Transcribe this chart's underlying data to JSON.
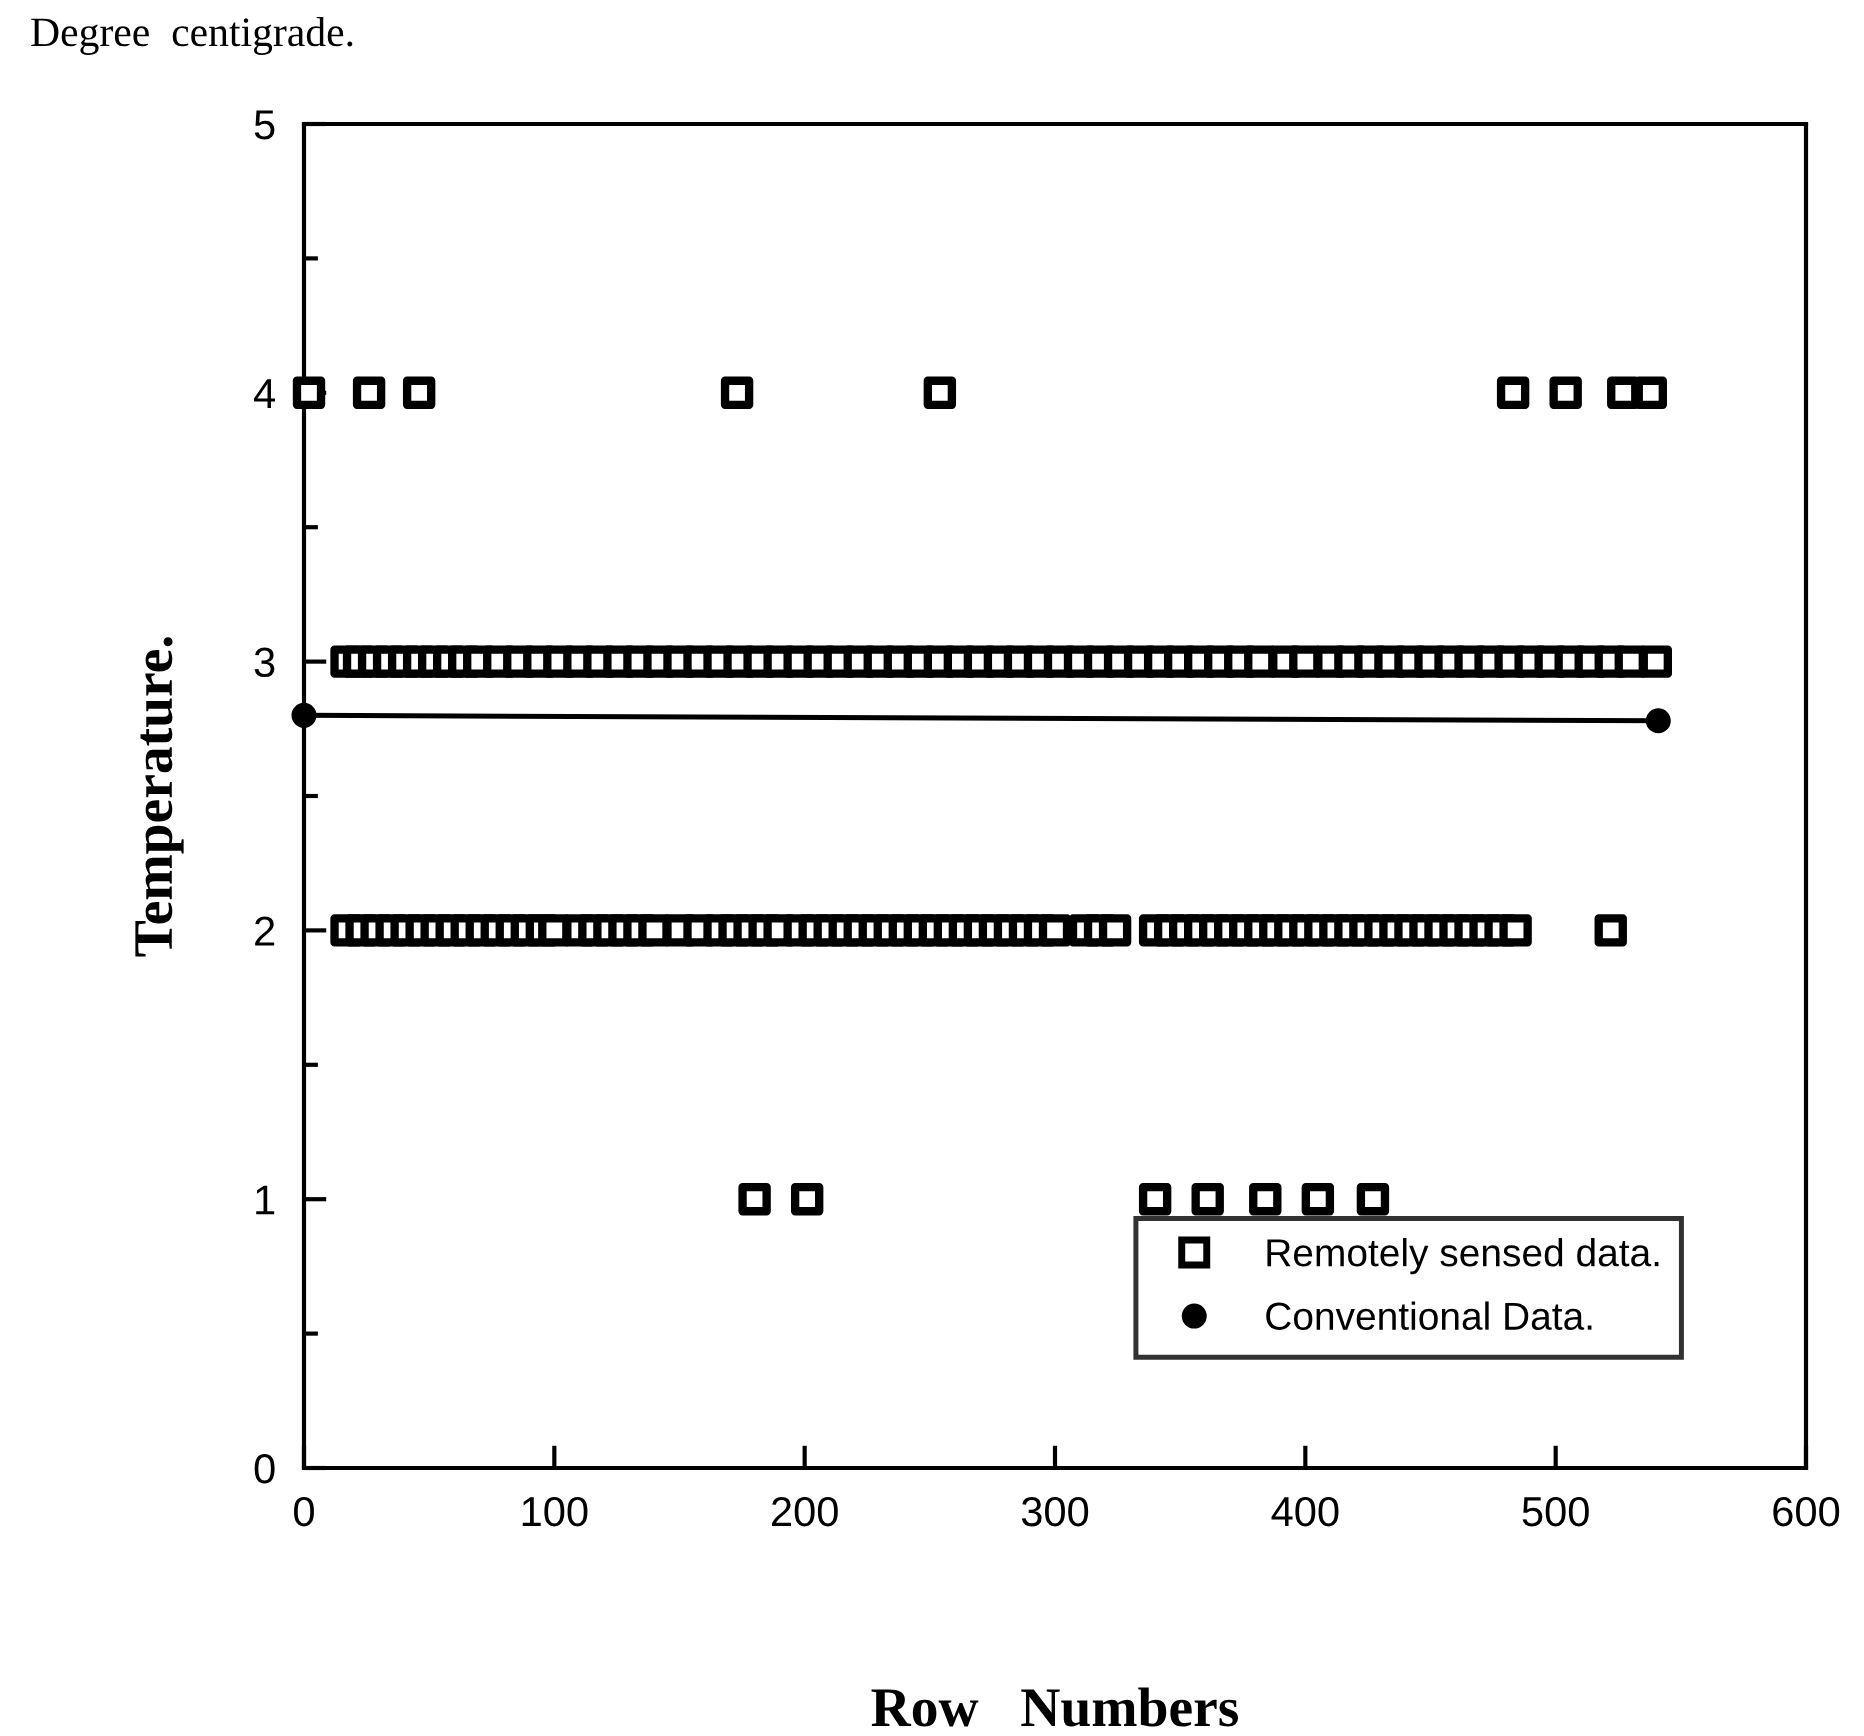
{
  "chart_data": {
    "type": "scatter",
    "annotations": [
      "Degree  centigrade."
    ],
    "xlabel": "Row   Numbers",
    "ylabel": "Temperature.",
    "xlim": [
      0,
      600
    ],
    "xticks": [
      0,
      100,
      200,
      300,
      400,
      500,
      600
    ],
    "ylim": [
      0,
      5
    ],
    "yticks": [
      0,
      1,
      2,
      3,
      4,
      5
    ],
    "grid": false,
    "legend": "bottom right",
    "series": [
      {
        "name": "Remotely sensed data.",
        "color": "#000000",
        "marker": "square",
        "x": [
          2,
          26,
          46,
          173,
          254,
          483,
          504,
          527,
          538,
          17,
          22,
          28,
          34,
          40,
          46,
          52,
          58,
          64,
          70,
          78,
          86,
          94,
          102,
          110,
          118,
          126,
          134,
          142,
          150,
          158,
          166,
          174,
          182,
          190,
          198,
          206,
          214,
          222,
          230,
          238,
          246,
          254,
          262,
          270,
          278,
          286,
          294,
          302,
          310,
          318,
          326,
          334,
          342,
          350,
          358,
          366,
          374,
          382,
          392,
          400,
          410,
          418,
          426,
          434,
          442,
          450,
          458,
          466,
          474,
          482,
          490,
          498,
          506,
          514,
          522,
          530,
          540,
          17,
          23,
          29,
          35,
          41,
          47,
          53,
          59,
          65,
          71,
          77,
          83,
          89,
          95,
          100,
          110,
          116,
          122,
          128,
          134,
          140,
          150,
          158,
          166,
          172,
          178,
          184,
          190,
          198,
          204,
          210,
          216,
          222,
          228,
          234,
          240,
          246,
          252,
          258,
          264,
          270,
          276,
          282,
          288,
          294,
          300,
          312,
          318,
          324,
          340,
          346,
          352,
          358,
          364,
          370,
          376,
          382,
          388,
          394,
          400,
          406,
          412,
          418,
          424,
          430,
          436,
          442,
          448,
          454,
          460,
          466,
          472,
          478,
          484,
          522,
          180,
          201,
          340,
          361,
          384,
          405,
          427
        ],
        "values": [
          4,
          4,
          4,
          4,
          4,
          4,
          4,
          4,
          4,
          3,
          3,
          3,
          3,
          3,
          3,
          3,
          3,
          3,
          3,
          3,
          3,
          3,
          3,
          3,
          3,
          3,
          3,
          3,
          3,
          3,
          3,
          3,
          3,
          3,
          3,
          3,
          3,
          3,
          3,
          3,
          3,
          3,
          3,
          3,
          3,
          3,
          3,
          3,
          3,
          3,
          3,
          3,
          3,
          3,
          3,
          3,
          3,
          3,
          3,
          3,
          3,
          3,
          3,
          3,
          3,
          3,
          3,
          3,
          3,
          3,
          3,
          3,
          3,
          3,
          3,
          3,
          3,
          2,
          2,
          2,
          2,
          2,
          2,
          2,
          2,
          2,
          2,
          2,
          2,
          2,
          2,
          2,
          2,
          2,
          2,
          2,
          2,
          2,
          2,
          2,
          2,
          2,
          2,
          2,
          2,
          2,
          2,
          2,
          2,
          2,
          2,
          2,
          2,
          2,
          2,
          2,
          2,
          2,
          2,
          2,
          2,
          2,
          2,
          2,
          2,
          2,
          2,
          2,
          2,
          2,
          2,
          2,
          2,
          2,
          2,
          2,
          2,
          2,
          2,
          2,
          2,
          2,
          2,
          2,
          2,
          2,
          2,
          2,
          2,
          2,
          2,
          2,
          1,
          1,
          1,
          1,
          1,
          1,
          1
        ]
      },
      {
        "name": "Conventional Data.",
        "color": "#000000",
        "type": "line",
        "marker": "circle",
        "line_style": "solid",
        "x": [
          0,
          541
        ],
        "values": [
          2.8,
          2.78
        ]
      }
    ]
  }
}
